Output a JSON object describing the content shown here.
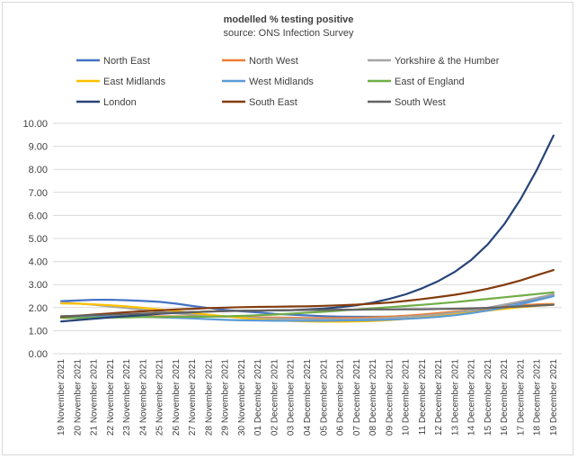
{
  "chart_data": {
    "type": "line",
    "title": "modelled % testing positive",
    "subtitle": "source: ONS Infection Survey",
    "ylim": [
      0,
      10
    ],
    "yticks": [
      "0.00",
      "1.00",
      "2.00",
      "3.00",
      "4.00",
      "5.00",
      "6.00",
      "7.00",
      "8.00",
      "9.00",
      "10.00"
    ],
    "grid": "horizontal",
    "legend_position": "top",
    "categories": [
      "19 November 2021",
      "20 November 2021",
      "21 November 2021",
      "22 November 2021",
      "23 November 2021",
      "24 November 2021",
      "25 November 2021",
      "26 November 2021",
      "27 November 2021",
      "28 November 2021",
      "29 November 2021",
      "30 November 2021",
      "01 December 2021",
      "02 December 2021",
      "03 December 2021",
      "04 December 2021",
      "05 December 2021",
      "06 December 2021",
      "07 December 2021",
      "08 December 2021",
      "09 December 2021",
      "10 December 2021",
      "11 December 2021",
      "12 December 2021",
      "13 December 2021",
      "14 December 2021",
      "15 December 2021",
      "16 December 2021",
      "17 December 2021",
      "18 December 2021",
      "19 December 2021"
    ],
    "series": [
      {
        "name": "North East",
        "color": "#4472c4",
        "values": [
          2.28,
          2.31,
          2.34,
          2.34,
          2.32,
          2.29,
          2.25,
          2.17,
          2.07,
          1.98,
          1.9,
          1.84,
          1.79,
          1.73,
          1.69,
          1.66,
          1.63,
          1.61,
          1.6,
          1.6,
          1.61,
          1.63,
          1.66,
          1.7,
          1.76,
          1.85,
          1.96,
          2.1,
          2.24,
          2.4,
          2.55
        ]
      },
      {
        "name": "North West",
        "color": "#ed7d31",
        "values": [
          1.58,
          1.58,
          1.59,
          1.6,
          1.61,
          1.62,
          1.62,
          1.62,
          1.62,
          1.62,
          1.61,
          1.6,
          1.58,
          1.57,
          1.56,
          1.55,
          1.55,
          1.55,
          1.56,
          1.58,
          1.61,
          1.65,
          1.7,
          1.76,
          1.83,
          1.9,
          1.97,
          2.04,
          2.1,
          2.14,
          2.16
        ]
      },
      {
        "name": "Yorkshire & the Humber",
        "color": "#a5a5a5",
        "values": [
          2.22,
          2.18,
          2.12,
          2.05,
          1.98,
          1.9,
          1.82,
          1.75,
          1.7,
          1.66,
          1.62,
          1.58,
          1.55,
          1.53,
          1.52,
          1.51,
          1.5,
          1.5,
          1.51,
          1.53,
          1.56,
          1.6,
          1.65,
          1.71,
          1.79,
          1.89,
          2.0,
          2.13,
          2.27,
          2.42,
          2.58
        ]
      },
      {
        "name": "East Midlands",
        "color": "#ffc000",
        "values": [
          2.18,
          2.17,
          2.14,
          2.1,
          2.05,
          1.99,
          1.92,
          1.85,
          1.77,
          1.69,
          1.62,
          1.55,
          1.49,
          1.45,
          1.42,
          1.4,
          1.39,
          1.39,
          1.4,
          1.42,
          1.46,
          1.51,
          1.57,
          1.63,
          1.71,
          1.79,
          1.87,
          1.95,
          2.02,
          2.08,
          2.12
        ]
      },
      {
        "name": "West Midlands",
        "color": "#5b9bd5",
        "values": [
          1.57,
          1.59,
          1.6,
          1.61,
          1.61,
          1.6,
          1.58,
          1.56,
          1.53,
          1.5,
          1.47,
          1.45,
          1.44,
          1.43,
          1.43,
          1.43,
          1.43,
          1.44,
          1.45,
          1.46,
          1.48,
          1.51,
          1.55,
          1.6,
          1.67,
          1.76,
          1.87,
          2.0,
          2.15,
          2.32,
          2.5
        ]
      },
      {
        "name": "East of England",
        "color": "#70ad47",
        "values": [
          1.55,
          1.55,
          1.56,
          1.57,
          1.58,
          1.59,
          1.59,
          1.6,
          1.6,
          1.61,
          1.62,
          1.64,
          1.67,
          1.7,
          1.74,
          1.78,
          1.82,
          1.87,
          1.92,
          1.97,
          2.02,
          2.07,
          2.12,
          2.18,
          2.24,
          2.31,
          2.38,
          2.45,
          2.52,
          2.59,
          2.66
        ]
      },
      {
        "name": "London",
        "color": "#264478",
        "values": [
          1.4,
          1.46,
          1.52,
          1.58,
          1.63,
          1.68,
          1.73,
          1.77,
          1.8,
          1.83,
          1.85,
          1.86,
          1.87,
          1.88,
          1.89,
          1.92,
          1.96,
          2.02,
          2.1,
          2.22,
          2.38,
          2.58,
          2.84,
          3.16,
          3.56,
          4.08,
          4.75,
          5.62,
          6.72,
          8.0,
          9.47
        ]
      },
      {
        "name": "South East",
        "color": "#843c0c",
        "values": [
          1.6,
          1.65,
          1.7,
          1.75,
          1.8,
          1.84,
          1.88,
          1.92,
          1.95,
          1.98,
          2.0,
          2.02,
          2.03,
          2.04,
          2.05,
          2.06,
          2.08,
          2.1,
          2.13,
          2.17,
          2.22,
          2.29,
          2.37,
          2.46,
          2.56,
          2.68,
          2.82,
          2.99,
          3.18,
          3.41,
          3.63
        ]
      },
      {
        "name": "South West",
        "color": "#636363",
        "values": [
          1.63,
          1.65,
          1.67,
          1.69,
          1.71,
          1.74,
          1.76,
          1.79,
          1.81,
          1.83,
          1.85,
          1.86,
          1.87,
          1.88,
          1.89,
          1.9,
          1.9,
          1.91,
          1.91,
          1.92,
          1.92,
          1.93,
          1.93,
          1.94,
          1.95,
          1.97,
          1.99,
          2.02,
          2.05,
          2.09,
          2.12
        ]
      }
    ]
  }
}
